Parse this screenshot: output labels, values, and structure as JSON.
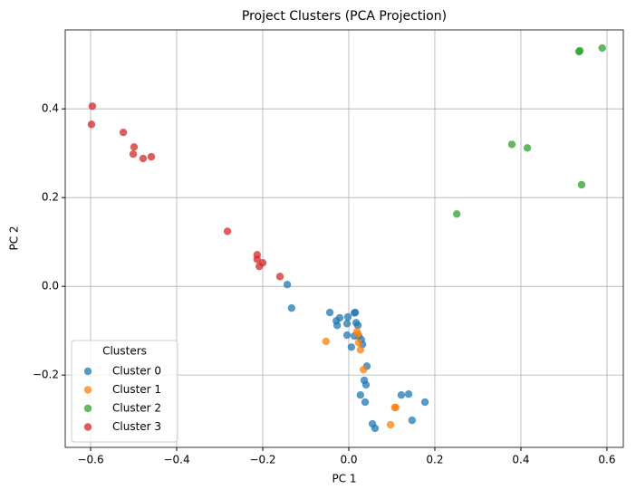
{
  "chart_data": {
    "type": "scatter",
    "title": "Project Clusters (PCA Projection)",
    "xlabel": "PC 1",
    "ylabel": "PC 2",
    "legend_title": "Clusters",
    "legend": "lower left",
    "grid": true,
    "xlim": [
      -0.659,
      0.638
    ],
    "ylim": [
      -0.363,
      0.578
    ],
    "xticks": [
      {
        "value": -0.6,
        "label": "−0.6"
      },
      {
        "value": -0.4,
        "label": "−0.4"
      },
      {
        "value": -0.2,
        "label": "−0.2"
      },
      {
        "value": 0.0,
        "label": "0.0"
      },
      0.2,
      0.4,
      0.6
    ],
    "yticks": [
      {
        "value": -0.2,
        "label": "−0.2"
      },
      {
        "value": 0.0,
        "label": "0.0"
      },
      0.2,
      0.4
    ],
    "series": [
      {
        "name": "Cluster 0",
        "color": "#1f77b4",
        "x": [
          -0.143,
          -0.133,
          -0.044,
          -0.029,
          -0.021,
          -0.027,
          -0.004,
          -0.002,
          -0.004,
          0.006,
          0.015,
          0.013,
          0.017,
          0.021,
          0.013,
          0.023,
          0.029,
          0.032,
          0.042,
          0.036,
          0.04,
          0.027,
          0.038,
          0.122,
          0.139,
          0.177,
          0.147,
          0.055,
          0.061
        ],
        "y": [
          0.004,
          -0.049,
          -0.059,
          -0.078,
          -0.071,
          -0.088,
          -0.084,
          -0.069,
          -0.11,
          -0.137,
          -0.059,
          -0.06,
          -0.082,
          -0.088,
          -0.112,
          -0.112,
          -0.12,
          -0.131,
          -0.18,
          -0.212,
          -0.222,
          -0.245,
          -0.261,
          -0.245,
          -0.243,
          -0.261,
          -0.302,
          -0.31,
          -0.32
        ]
      },
      {
        "name": "Cluster 1",
        "color": "#ff7f0e",
        "x": [
          -0.053,
          0.019,
          0.021,
          0.023,
          0.027,
          0.034,
          0.107,
          0.109,
          0.097
        ],
        "y": [
          -0.124,
          -0.102,
          -0.108,
          -0.127,
          -0.143,
          -0.188,
          -0.273,
          -0.273,
          -0.312
        ]
      },
      {
        "name": "Cluster 2",
        "color": "#2ca02c",
        "x": [
          0.251,
          0.379,
          0.415,
          0.541,
          0.537,
          0.535,
          0.589
        ],
        "y": [
          0.163,
          0.32,
          0.312,
          0.229,
          0.531,
          0.529,
          0.537
        ]
      },
      {
        "name": "Cluster 3",
        "color": "#d62728",
        "x": [
          -0.596,
          -0.598,
          -0.524,
          -0.499,
          -0.501,
          -0.478,
          -0.459,
          -0.282,
          -0.213,
          -0.213,
          -0.208,
          -0.2,
          -0.16
        ],
        "y": [
          0.406,
          0.365,
          0.347,
          0.314,
          0.298,
          0.288,
          0.292,
          0.124,
          0.071,
          0.061,
          0.045,
          0.053,
          0.022
        ]
      }
    ]
  }
}
